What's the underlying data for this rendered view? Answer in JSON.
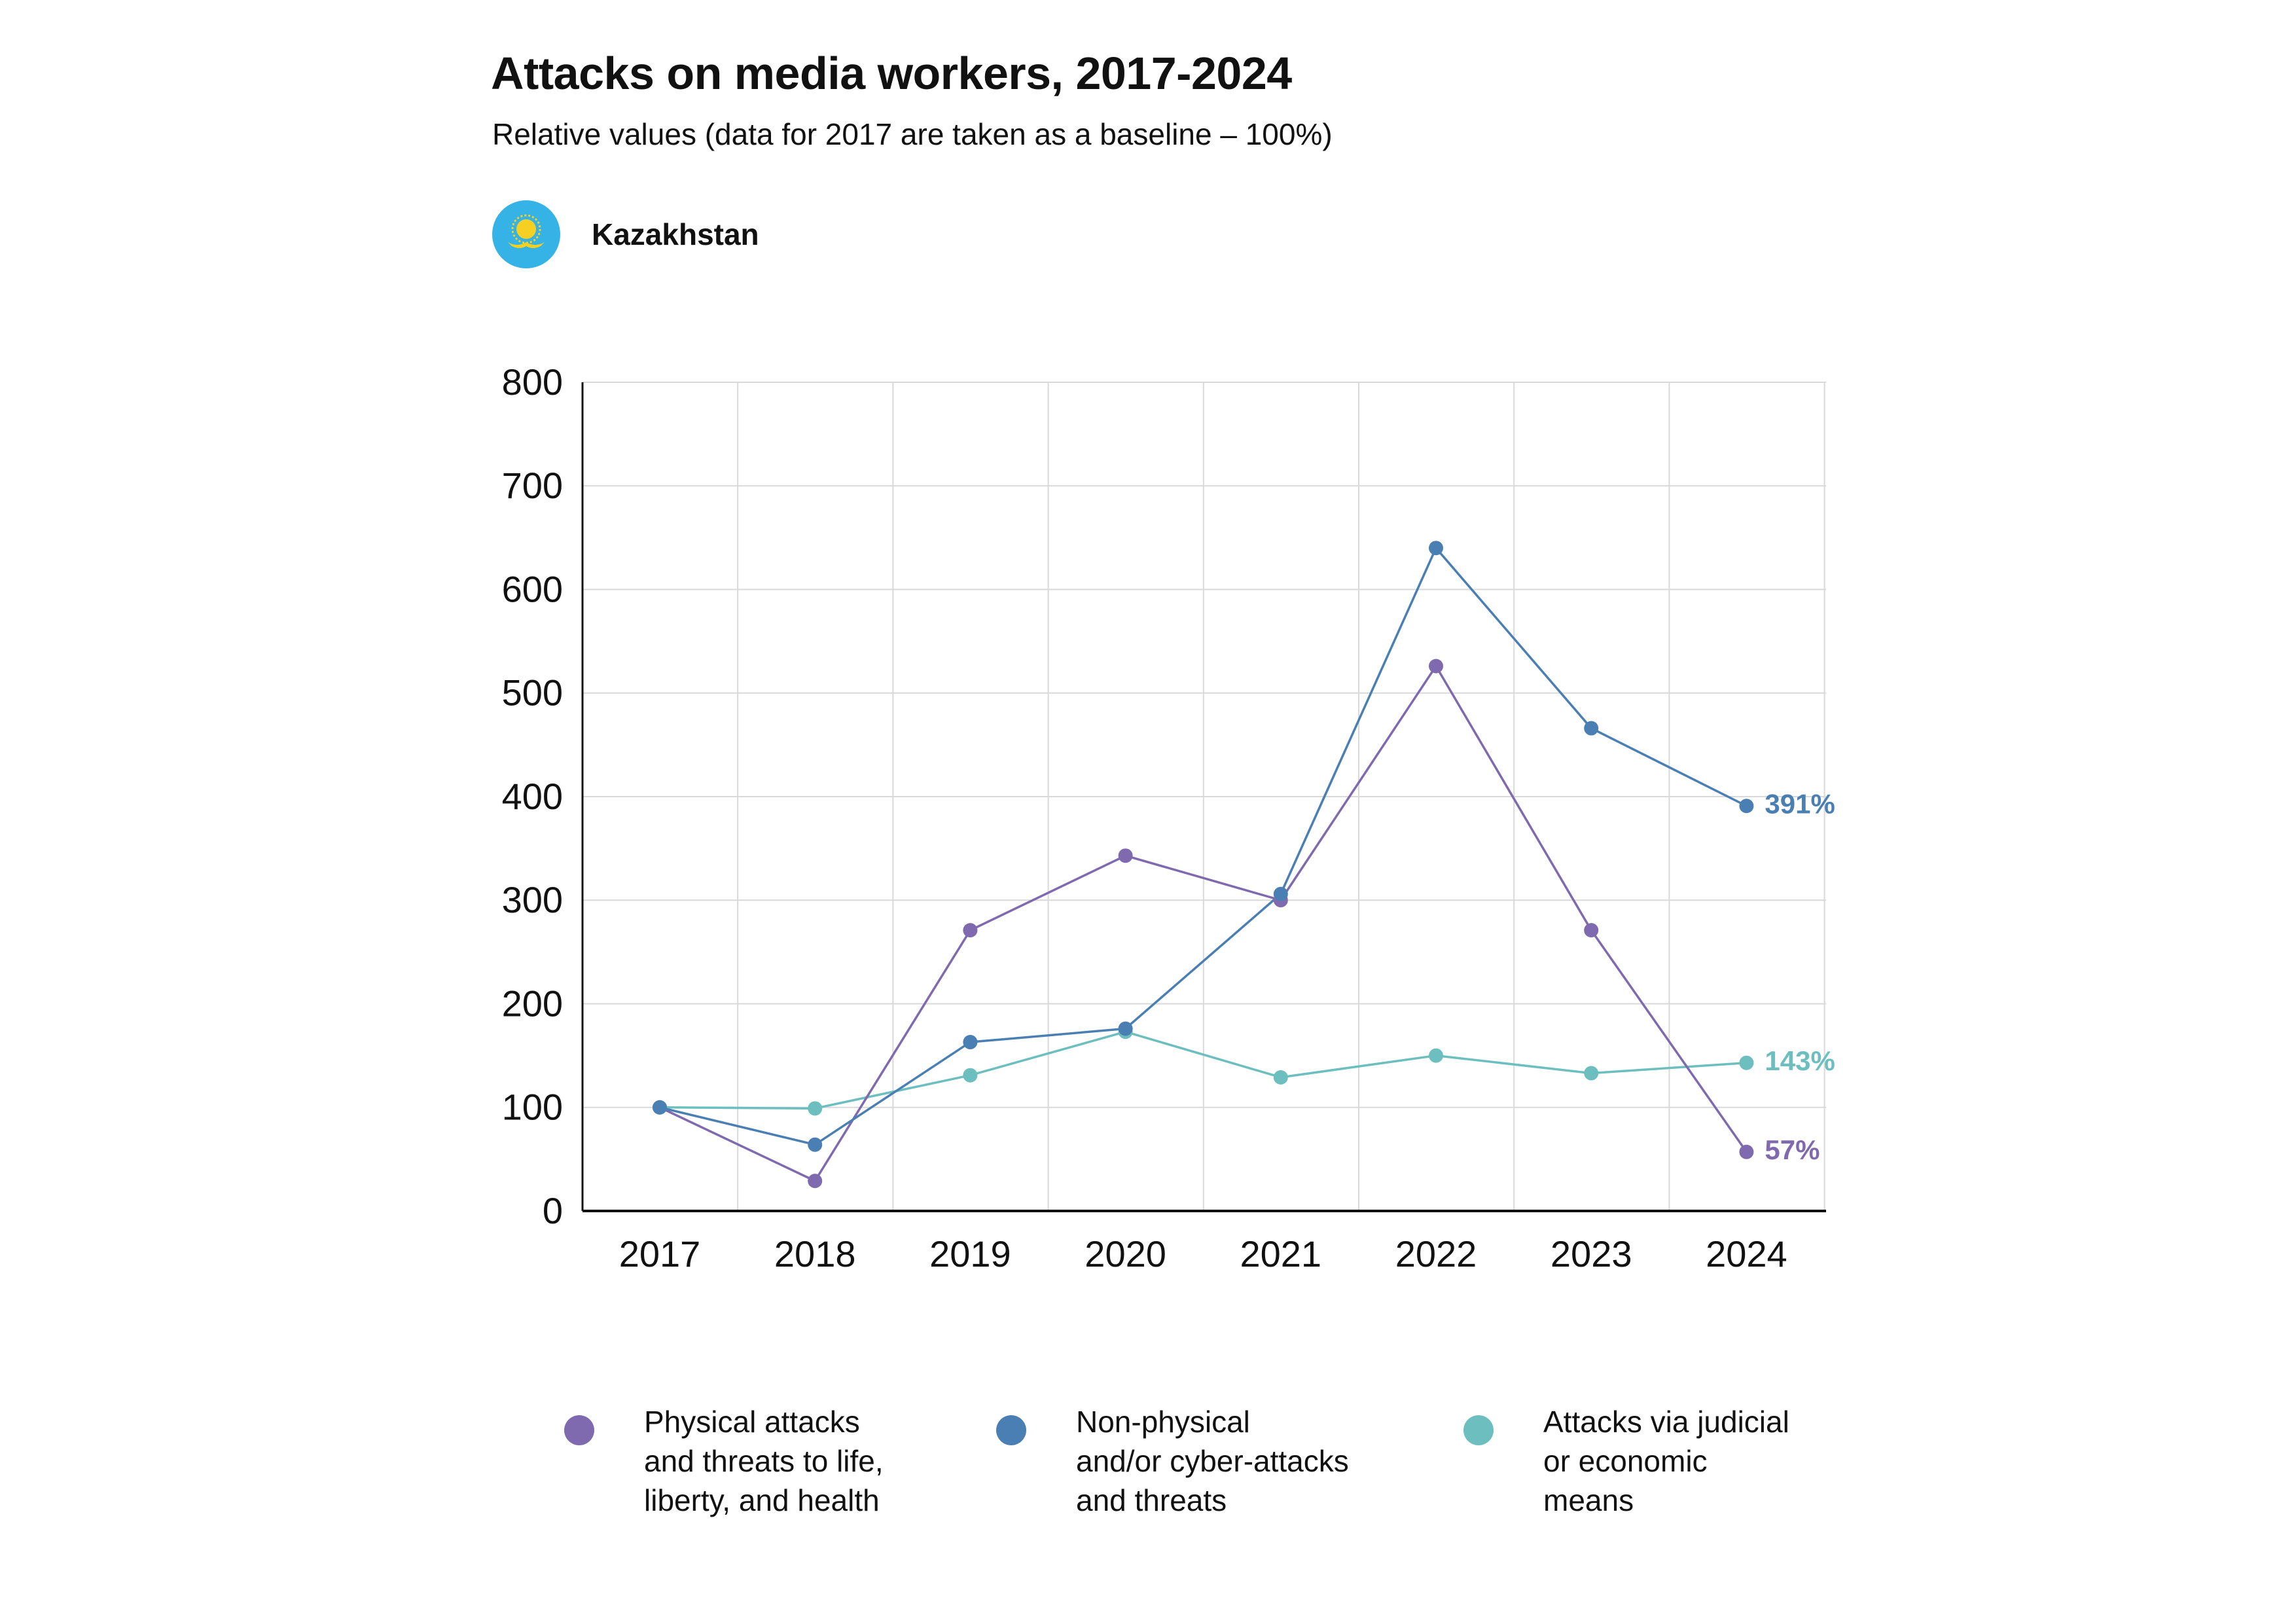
{
  "header": {
    "title": "Attacks on media workers, 2017-2024",
    "subtitle": "Relative values (data for 2017 are taken as a baseline – 100%)",
    "country": "Kazakhstan",
    "flag_icon": "kazakhstan-flag-icon"
  },
  "colors": {
    "physical": "#7f6aaf",
    "nonphysical": "#4a7fb3",
    "judicial": "#6dbfbf",
    "grid": "#d9d9d9",
    "axis": "#111111",
    "flag_blue": "#35b2e6",
    "flag_gold": "#f5d022"
  },
  "chart_data": {
    "type": "line",
    "x": [
      "2017",
      "2018",
      "2019",
      "2020",
      "2021",
      "2022",
      "2023",
      "2024"
    ],
    "ylim": [
      0,
      800
    ],
    "yticks": [
      0,
      100,
      200,
      300,
      400,
      500,
      600,
      700,
      800
    ],
    "grid": true,
    "legend_position": "bottom",
    "series": [
      {
        "key": "physical",
        "name": "Physical attacks\nand threats to life,\nliberty, and health",
        "values": [
          100,
          29,
          271,
          343,
          300,
          526,
          271,
          57
        ],
        "end_label": "57%"
      },
      {
        "key": "nonphysical",
        "name": "Non-physical\nand/or cyber-attacks\nand threats",
        "values": [
          100,
          64,
          163,
          176,
          306,
          640,
          466,
          391
        ],
        "end_label": "391%"
      },
      {
        "key": "judicial",
        "name": "Attacks via judicial\nor economic\nmeans",
        "values": [
          100,
          99,
          131,
          173,
          129,
          150,
          133,
          143
        ],
        "end_label": "143%"
      }
    ]
  }
}
